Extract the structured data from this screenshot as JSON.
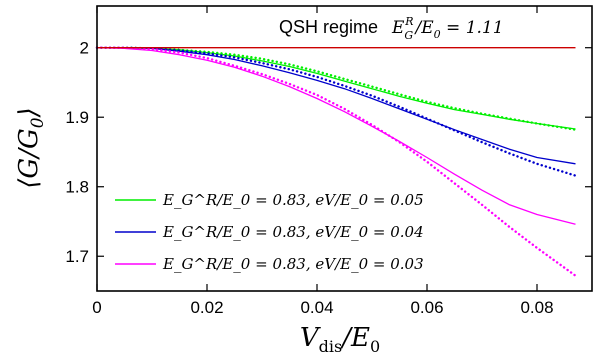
{
  "chart_data": {
    "type": "line",
    "title": "",
    "xlabel": "V_dis / E_0",
    "ylabel": "⟨G / G_0⟩",
    "xlim": [
      0,
      0.09
    ],
    "ylim": [
      1.65,
      2.06
    ],
    "x_ticks": [
      {
        "value": 0,
        "label": "0"
      },
      {
        "value": 0.02,
        "label": "0.02"
      },
      {
        "value": 0.04,
        "label": "0.04"
      },
      {
        "value": 0.06,
        "label": "0.06"
      },
      {
        "value": 0.08,
        "label": "0.08"
      }
    ],
    "y_ticks": [
      {
        "value": 1.7,
        "label": "1.7"
      },
      {
        "value": 1.8,
        "label": "1.8"
      },
      {
        "value": 1.9,
        "label": "1.9"
      },
      {
        "value": 2.0,
        "label": "2"
      }
    ],
    "grid": false,
    "legend_position": "bottom-left",
    "annotation": {
      "text": "QSH regime",
      "math": "E_G^R / E_0 = 1.11"
    },
    "x": [
      0,
      0.005,
      0.01,
      0.015,
      0.02,
      0.025,
      0.03,
      0.035,
      0.04,
      0.045,
      0.05,
      0.055,
      0.06,
      0.065,
      0.07,
      0.075,
      0.08,
      0.087
    ],
    "series": [
      {
        "name": "E_G^R/E_0 = 0.83, eV/E_0 = 0.05",
        "legend": [
          "E_G^R/E_0 = 0.83, ",
          "eV/E_0 = 0.05"
        ],
        "color": "#00ee00",
        "style": "solid",
        "values": [
          2.0,
          2.0,
          1.999,
          1.997,
          1.993,
          1.988,
          1.981,
          1.973,
          1.963,
          1.952,
          1.941,
          1.93,
          1.92,
          1.911,
          1.904,
          1.897,
          1.891,
          1.883
        ]
      },
      {
        "name": "E_G^R/E_0 = 0.83, eV/E_0 = 0.05 (dotted)",
        "color": "#00ee00",
        "style": "dotted",
        "values": [
          2.0,
          2.0,
          1.999,
          1.997,
          1.994,
          1.99,
          1.984,
          1.976,
          1.966,
          1.955,
          1.944,
          1.933,
          1.922,
          1.913,
          1.905,
          1.898,
          1.891,
          1.882
        ]
      },
      {
        "name": "E_G^R/E_0 = 0.83, eV/E_0 = 0.04",
        "legend": [
          "E_G^R/E_0 = 0.83, ",
          "eV/E_0 = 0.04"
        ],
        "color": "#0000cc",
        "style": "solid",
        "values": [
          2.0,
          2.0,
          1.999,
          1.995,
          1.99,
          1.983,
          1.974,
          1.964,
          1.953,
          1.941,
          1.927,
          1.912,
          1.897,
          1.882,
          1.868,
          1.854,
          1.842,
          1.833
        ]
      },
      {
        "name": "E_G^R/E_0 = 0.83, eV/E_0 = 0.04 (dotted)",
        "color": "#0000cc",
        "style": "dotted",
        "values": [
          2.0,
          2.0,
          1.999,
          1.996,
          1.992,
          1.986,
          1.978,
          1.969,
          1.958,
          1.945,
          1.931,
          1.915,
          1.898,
          1.881,
          1.864,
          1.848,
          1.833,
          1.816
        ]
      },
      {
        "name": "E_G^R/E_0 = 0.83, eV/E_0 = 0.03",
        "legend": [
          "E_G^R/E_0 = 0.83, ",
          "eV/E_0 = 0.03"
        ],
        "color": "#ff00ff",
        "style": "solid",
        "values": [
          2.0,
          1.999,
          1.996,
          1.99,
          1.982,
          1.972,
          1.959,
          1.944,
          1.927,
          1.908,
          1.887,
          1.865,
          1.842,
          1.818,
          1.795,
          1.774,
          1.76,
          1.746
        ]
      },
      {
        "name": "E_G^R/E_0 = 0.83, eV/E_0 = 0.03 (dotted)",
        "color": "#ff00ff",
        "style": "dotted",
        "values": [
          2.0,
          2.0,
          1.998,
          1.993,
          1.985,
          1.974,
          1.962,
          1.948,
          1.932,
          1.912,
          1.889,
          1.864,
          1.836,
          1.805,
          1.774,
          1.742,
          1.712,
          1.672
        ]
      },
      {
        "name": "QSH regime E_G^R/E_0 = 1.11",
        "color": "#cc0000",
        "style": "solid",
        "values": [
          2.0,
          2.0,
          2.0,
          2.0,
          2.0,
          2.0,
          2.0,
          2.0,
          2.0,
          2.0,
          2.0,
          2.0,
          2.0,
          2.0,
          2.0,
          2.0,
          2.0,
          2.0
        ]
      }
    ]
  }
}
